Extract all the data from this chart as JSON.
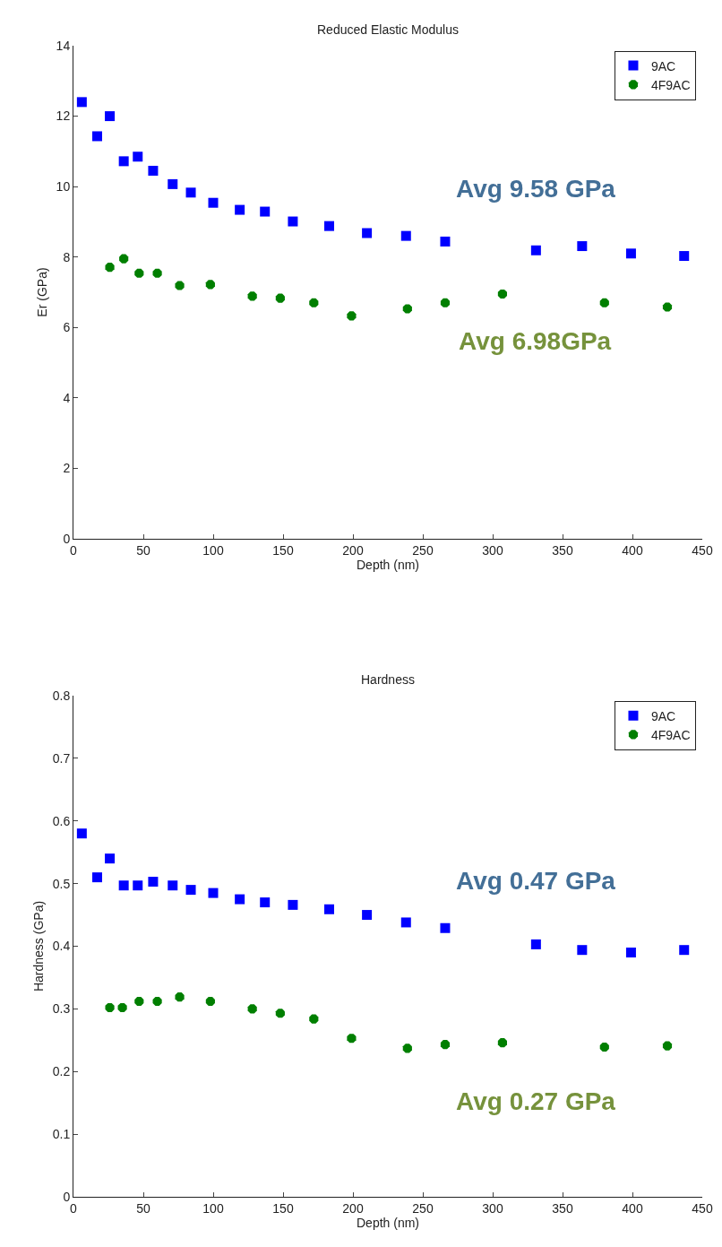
{
  "chart_data": [
    {
      "type": "scatter",
      "title": "Reduced Elastic Modulus",
      "xlabel": "Depth (nm)",
      "ylabel": "Er (GPa)",
      "xlim": [
        0,
        450
      ],
      "xticks": [
        0,
        50,
        100,
        150,
        200,
        250,
        300,
        350,
        400,
        450
      ],
      "ylim": [
        0,
        14
      ],
      "yticks": [
        0,
        2,
        4,
        6,
        8,
        10,
        12,
        14
      ],
      "grid": false,
      "legend": "top right",
      "series": [
        {
          "name": "9AC",
          "color": "#0000ff",
          "marker": "square",
          "x": [
            6,
            17,
            26,
            36,
            46,
            57,
            71,
            84,
            100,
            119,
            137,
            157,
            183,
            210,
            238,
            266,
            331,
            364,
            399,
            437
          ],
          "values": [
            12.4,
            11.43,
            12.0,
            10.72,
            10.85,
            10.45,
            10.07,
            9.83,
            9.54,
            9.34,
            9.29,
            9.01,
            8.88,
            8.68,
            8.6,
            8.44,
            8.19,
            8.31,
            8.1,
            8.03
          ]
        },
        {
          "name": "4F9AC",
          "color": "#007f00",
          "marker": "circle",
          "x": [
            26,
            36,
            47,
            60,
            76,
            98,
            128,
            148,
            172,
            199,
            239,
            266,
            307,
            380,
            425
          ],
          "values": [
            7.71,
            7.95,
            7.54,
            7.54,
            7.19,
            7.22,
            6.89,
            6.83,
            6.7,
            6.33,
            6.53,
            6.7,
            6.95,
            6.7,
            6.58
          ]
        }
      ],
      "annotations": [
        "Avg 9.58 GPa",
        "Avg 6.98GPa"
      ]
    },
    {
      "type": "scatter",
      "title": "Hardness",
      "xlabel": "Depth (nm)",
      "ylabel": "Hardness (GPa)",
      "xlim": [
        0,
        450
      ],
      "xticks": [
        0,
        50,
        100,
        150,
        200,
        250,
        300,
        350,
        400,
        450
      ],
      "ylim": [
        0,
        0.8
      ],
      "yticks": [
        0,
        0.1,
        0.2,
        0.3,
        0.4,
        0.5,
        0.6,
        0.7,
        0.8
      ],
      "grid": false,
      "legend": "top right",
      "series": [
        {
          "name": "9AC",
          "color": "#0000ff",
          "marker": "square",
          "x": [
            6,
            17,
            26,
            36,
            46,
            57,
            71,
            84,
            100,
            119,
            137,
            157,
            183,
            210,
            238,
            266,
            331,
            364,
            399,
            437
          ],
          "values": [
            0.58,
            0.51,
            0.54,
            0.497,
            0.497,
            0.503,
            0.497,
            0.49,
            0.485,
            0.475,
            0.47,
            0.466,
            0.459,
            0.45,
            0.438,
            0.429,
            0.403,
            0.394,
            0.39,
            0.394
          ]
        },
        {
          "name": "4F9AC",
          "color": "#007f00",
          "marker": "circle",
          "x": [
            26,
            35,
            47,
            60,
            76,
            98,
            128,
            148,
            172,
            199,
            239,
            266,
            307,
            380,
            425
          ],
          "values": [
            0.302,
            0.302,
            0.312,
            0.312,
            0.319,
            0.312,
            0.3,
            0.293,
            0.284,
            0.253,
            0.237,
            0.243,
            0.246,
            0.239,
            0.241
          ]
        }
      ],
      "annotations": [
        "Avg 0.47 GPa",
        "Avg 0.27 GPa"
      ]
    }
  ]
}
